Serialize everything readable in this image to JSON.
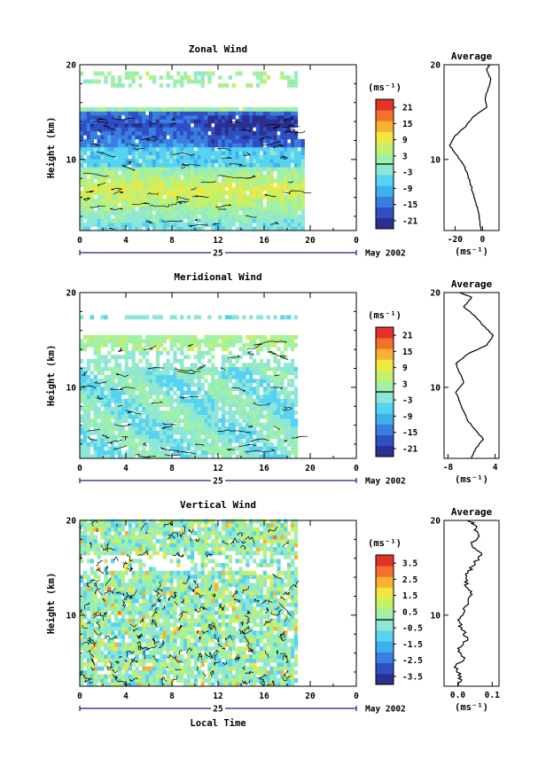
{
  "chart_data": [
    {
      "type": "heatmap",
      "title": "Zonal Wind",
      "ylabel": "Height (km)",
      "ytick_labels": [
        "10",
        "20"
      ],
      "xtick_labels": [
        "0",
        "4",
        "8",
        "12",
        "16",
        "20",
        "0"
      ],
      "date_label": "25",
      "date_suffix": "May 2002",
      "xlim": [
        0,
        24
      ],
      "ylim": [
        2.5,
        20
      ],
      "colorbar": {
        "unit": "(ms⁻¹)",
        "tick_labels": [
          "21",
          "15",
          "9",
          "3",
          "-3",
          "-9",
          "-15",
          "-21"
        ],
        "range": [
          -24,
          24
        ]
      },
      "profile": {
        "title": "Average",
        "xlabel": "(ms⁻¹)",
        "xtick_labels": [
          "-20",
          "0"
        ],
        "xlim": [
          -28,
          12
        ],
        "ytick_labels": [
          "10",
          "20"
        ],
        "height": [
          2.5,
          3.5,
          4.5,
          5.5,
          6.5,
          7.5,
          8.5,
          9.5,
          10.5,
          11.5,
          12.5,
          13.5,
          14.5,
          15.5,
          16.5,
          17.5,
          18.5,
          19.5,
          20
        ],
        "wind": [
          -1,
          -2,
          -3,
          -5,
          -7,
          -9,
          -11,
          -14,
          -19,
          -24,
          -20,
          -12,
          -7,
          3,
          2,
          4,
          6,
          3,
          5
        ]
      }
    },
    {
      "type": "heatmap",
      "title": "Meridional Wind",
      "ylabel": "Height (km)",
      "ytick_labels": [
        "10",
        "20"
      ],
      "xtick_labels": [
        "0",
        "4",
        "8",
        "12",
        "16",
        "20",
        "0"
      ],
      "date_label": "25",
      "date_suffix": "May 2002",
      "xlim": [
        0,
        24
      ],
      "ylim": [
        2.5,
        20
      ],
      "colorbar": {
        "unit": "(ms⁻¹)",
        "tick_labels": [
          "21",
          "15",
          "9",
          "3",
          "-3",
          "-9",
          "-15",
          "-21"
        ],
        "range": [
          -24,
          24
        ]
      },
      "profile": {
        "title": "Average",
        "xlabel": "(ms⁻¹)",
        "xtick_labels": [
          "-8",
          "4"
        ],
        "xlim": [
          -9,
          5
        ],
        "ytick_labels": [
          "10",
          "20"
        ],
        "height": [
          2.5,
          3.5,
          4.5,
          5.5,
          6.5,
          7.5,
          8.5,
          9.5,
          10.5,
          11.5,
          12.5,
          13.5,
          14.5,
          15.5,
          16.5,
          17.5,
          18.5,
          19.5,
          20
        ],
        "wind": [
          -2,
          -1,
          1,
          -1,
          -3,
          -4,
          -5,
          -6,
          -4,
          -5,
          -6,
          -3,
          2,
          3.5,
          1,
          -1,
          -4,
          -2,
          -5
        ]
      }
    },
    {
      "type": "heatmap",
      "title": "Vertical Wind",
      "ylabel": "Height (km)",
      "xlabel": "Local Time",
      "ytick_labels": [
        "10",
        "20"
      ],
      "xtick_labels": [
        "0",
        "4",
        "8",
        "12",
        "16",
        "20",
        "0"
      ],
      "date_label": "25",
      "date_suffix": "May 2002",
      "xlim": [
        0,
        24
      ],
      "ylim": [
        2.5,
        20
      ],
      "colorbar": {
        "unit": "(ms⁻¹)",
        "tick_labels": [
          "3.5",
          "2.5",
          "1.5",
          "0.5",
          "-0.5",
          "-1.5",
          "-2.5",
          "-3.5"
        ],
        "range": [
          -4,
          4
        ]
      },
      "profile": {
        "title": "Average",
        "xlabel": "(ms⁻¹)",
        "xtick_labels": [
          "0.0",
          "0.1"
        ],
        "xlim": [
          -0.04,
          0.12
        ],
        "ytick_labels": [
          "10",
          "20"
        ],
        "height": [
          2.5,
          3.5,
          4.5,
          5.5,
          6.5,
          7.5,
          8.5,
          9.5,
          10.5,
          11.5,
          12.5,
          13.5,
          14.5,
          15.5,
          16.5,
          17.5,
          18.5,
          19.5,
          20
        ],
        "wind": [
          0.0,
          0.01,
          -0.01,
          0.02,
          0.0,
          0.03,
          0.01,
          0.0,
          0.02,
          0.03,
          0.04,
          0.02,
          0.03,
          0.05,
          0.07,
          0.04,
          0.06,
          0.05,
          0.03
        ]
      }
    }
  ]
}
